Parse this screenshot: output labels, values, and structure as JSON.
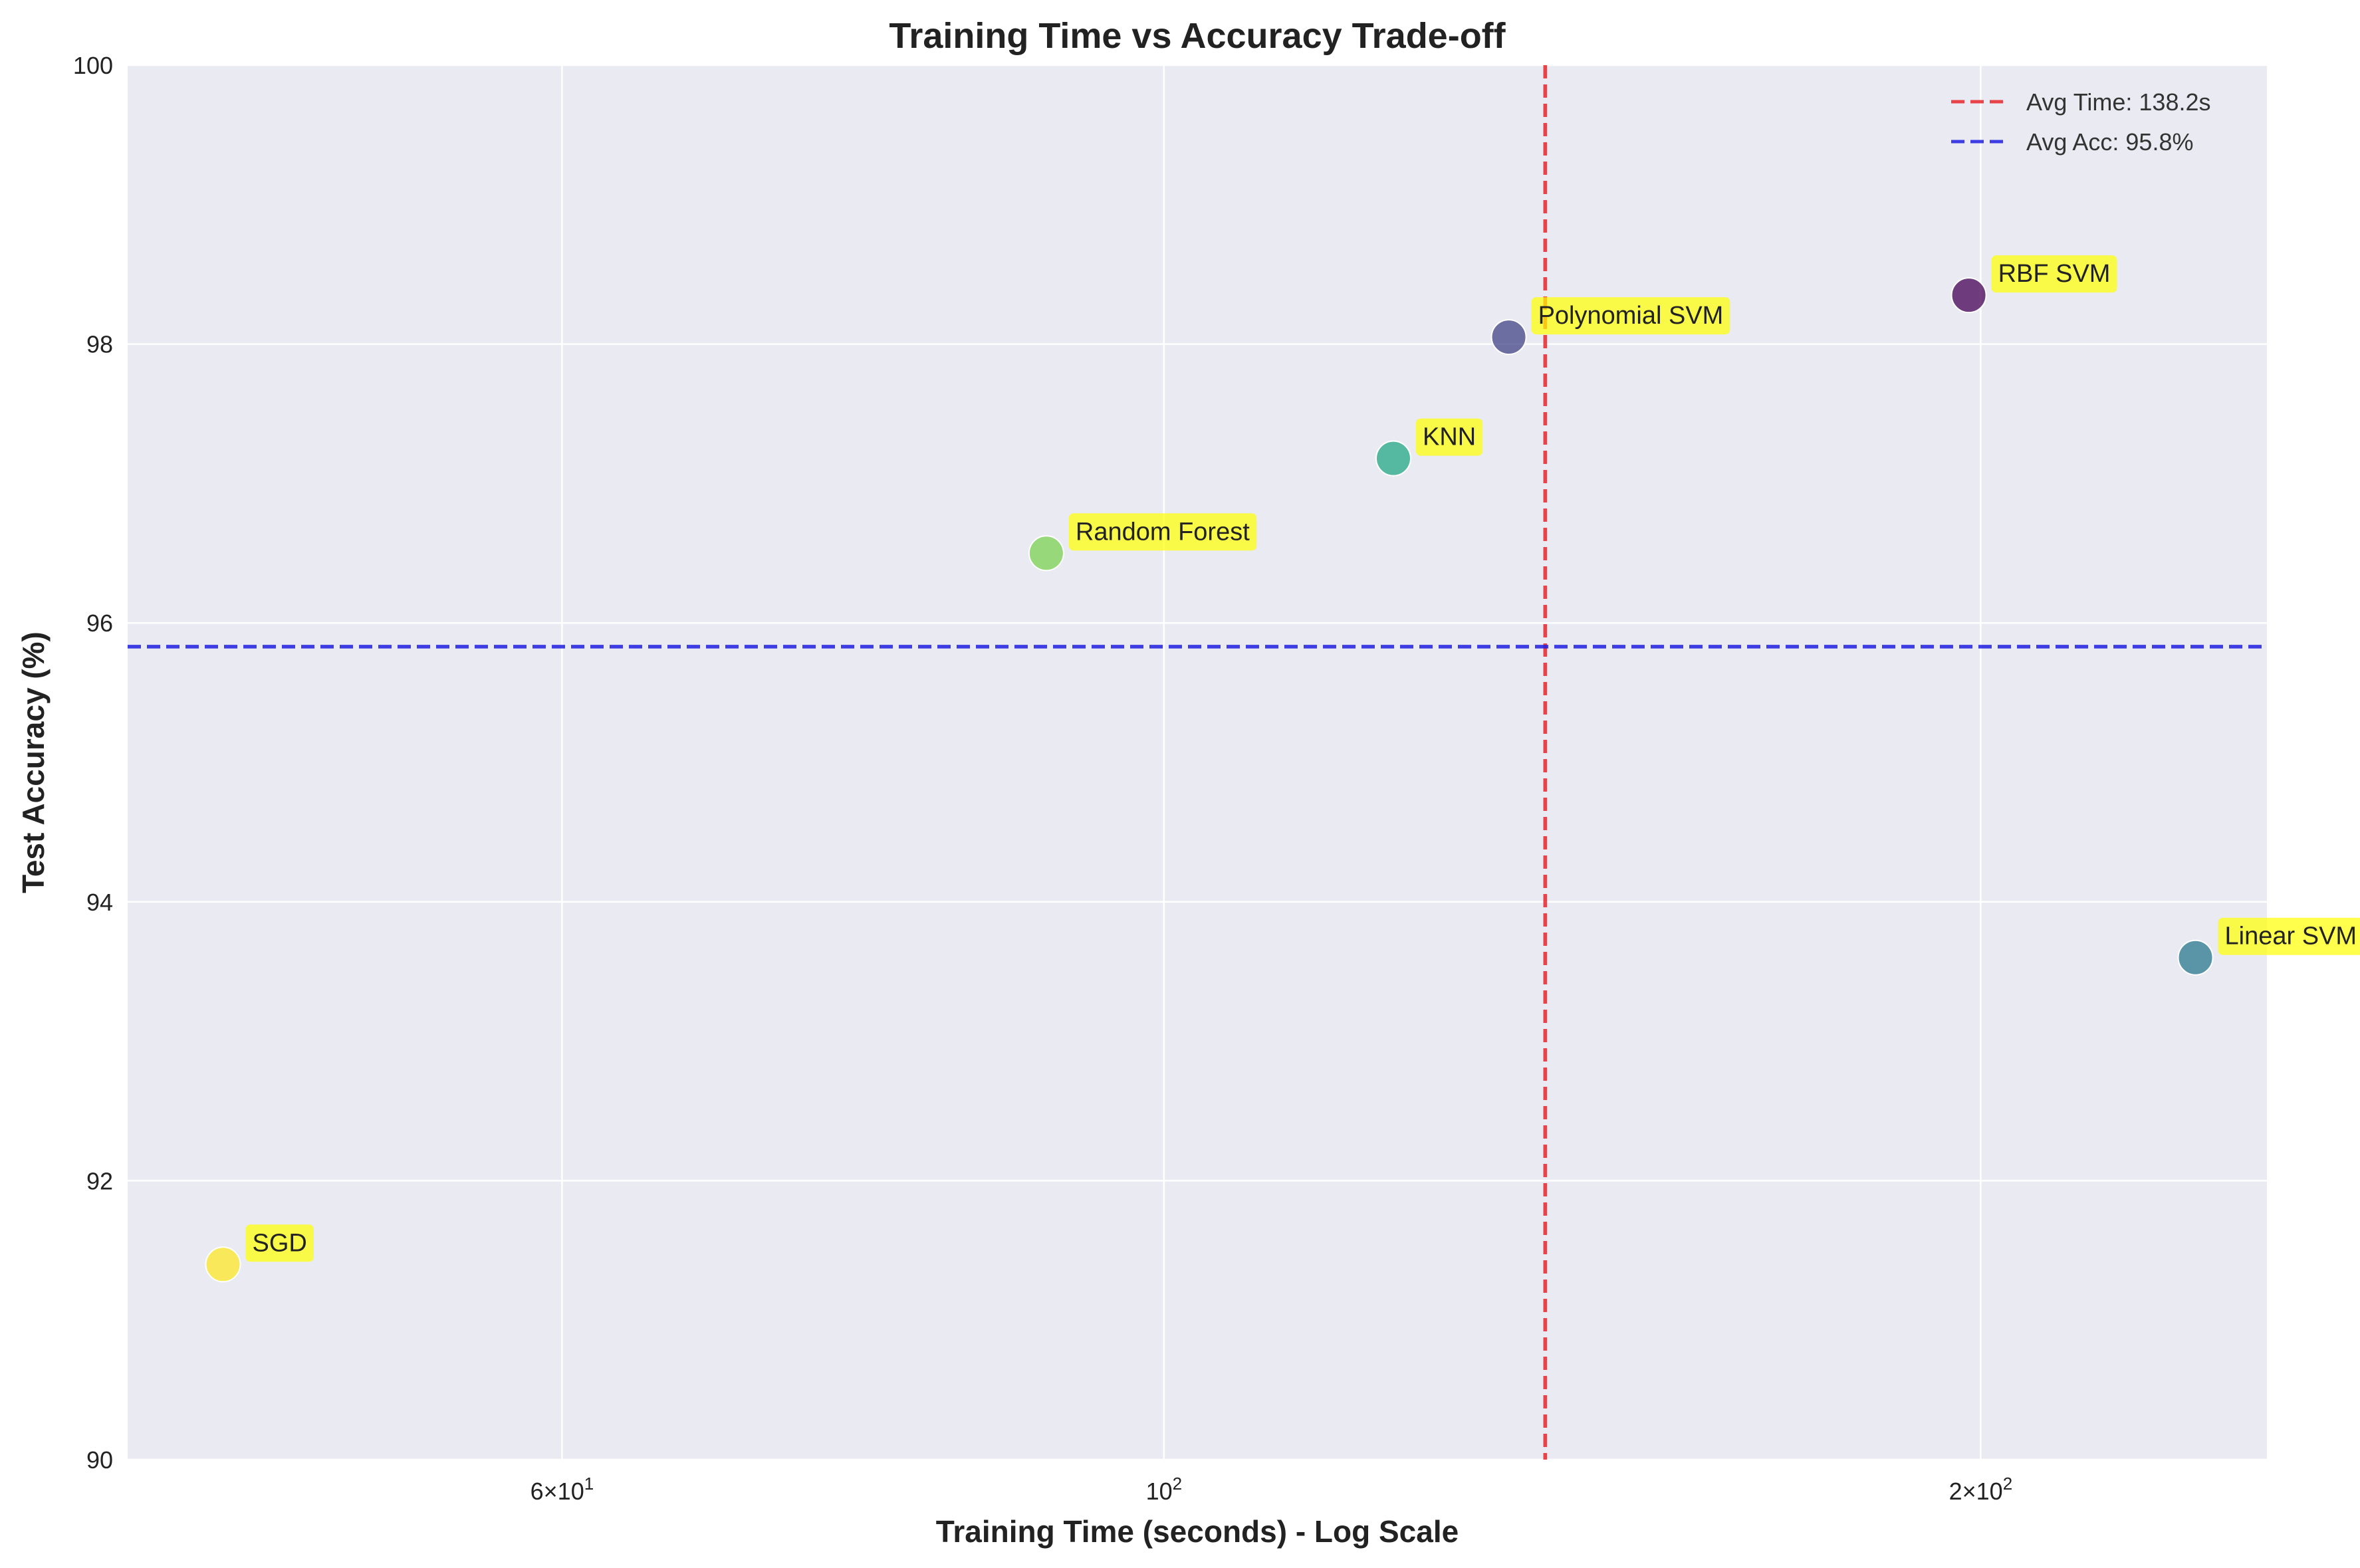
{
  "chart_data": {
    "type": "scatter",
    "title": "Training Time vs Accuracy Trade-off",
    "xlabel": "Training Time (seconds) - Log Scale",
    "ylabel": "Test Accuracy (%)",
    "xscale": "log",
    "xlim": [
      41.5,
      255
    ],
    "ylim": [
      90,
      100
    ],
    "x_ticks": [
      {
        "value": 60,
        "mantissa": "6",
        "base": "10",
        "exp": "1"
      },
      {
        "value": 100,
        "mantissa": "",
        "base": "10",
        "exp": "2"
      },
      {
        "value": 200,
        "mantissa": "2",
        "base": "10",
        "exp": "2"
      }
    ],
    "y_ticks": [
      90,
      92,
      94,
      96,
      98,
      100
    ],
    "grid": true,
    "background": "#eaeaf2",
    "points": [
      {
        "label": "SGD",
        "x": 45.0,
        "y": 91.4,
        "color": "#fde725"
      },
      {
        "label": "Random Forest",
        "x": 90.5,
        "y": 96.5,
        "color": "#7ad151"
      },
      {
        "label": "KNN",
        "x": 121.5,
        "y": 97.18,
        "color": "#22a884"
      },
      {
        "label": "Polynomial SVM",
        "x": 134.0,
        "y": 98.05,
        "color": "#414487"
      },
      {
        "label": "RBF SVM",
        "x": 198.0,
        "y": 98.35,
        "color": "#440154"
      },
      {
        "label": "Linear SVM",
        "x": 240.0,
        "y": 93.6,
        "color": "#2a788e"
      }
    ],
    "reference_lines": [
      {
        "orientation": "vertical",
        "value": 138.2,
        "label": "Avg Time: 138.2s",
        "color": "#e8262a"
      },
      {
        "orientation": "horizontal",
        "value": 95.83,
        "label": "Avg Acc: 95.8%",
        "color": "#1f1fe0"
      }
    ],
    "legend_position": "top-right"
  }
}
